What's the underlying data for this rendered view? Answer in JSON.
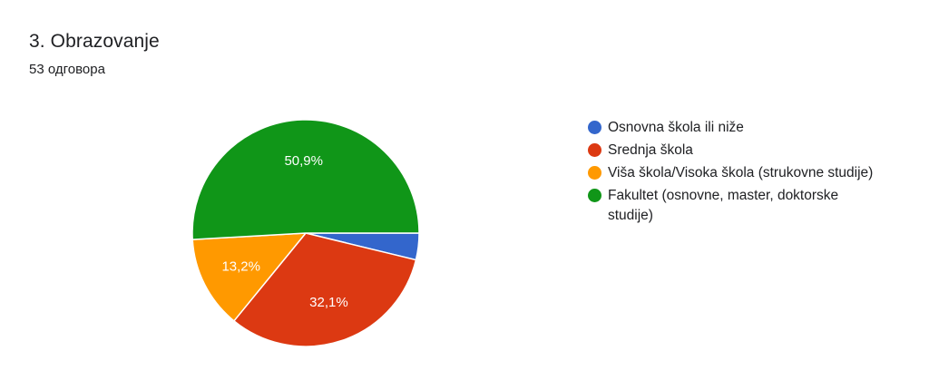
{
  "question": {
    "title": "3. Obrazovanje",
    "responses": "53 одговора"
  },
  "chart_data": {
    "type": "pie",
    "total_responses": 53,
    "slices": [
      {
        "label": "Osnovna škola ili niže",
        "percent": 3.8,
        "display": "",
        "color": "#3366cc"
      },
      {
        "label": "Srednja škola",
        "percent": 32.1,
        "display": "32,1%",
        "color": "#dc3912"
      },
      {
        "label": "Viša škola/Visoka škola (strukovne studije)",
        "percent": 13.2,
        "display": "13,2%",
        "color": "#ff9900"
      },
      {
        "label": "Fakultet (osnovne, master, doktorske studije)",
        "percent": 50.9,
        "display": "50,9%",
        "color": "#109618"
      }
    ],
    "legend_position": "right"
  }
}
